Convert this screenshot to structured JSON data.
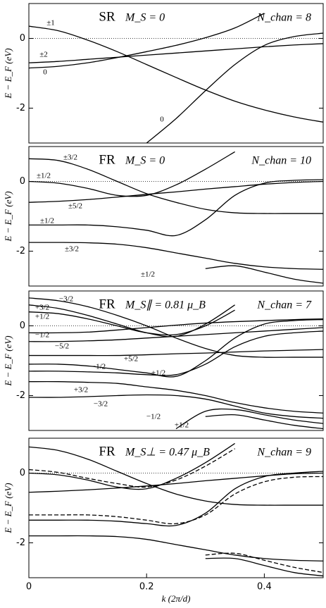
{
  "chart_data": [
    {
      "type": "line",
      "title": "SR",
      "subtitle": "M_S = 0",
      "annotation": "N_chan = 8",
      "ylabel": "E − E_F (eV)",
      "x": [
        0,
        0.05,
        0.1,
        0.15,
        0.2,
        0.25,
        0.3,
        0.35,
        0.4,
        0.45,
        0.5
      ],
      "xlim": [
        0,
        0.5
      ],
      "ylim": [
        -3,
        1
      ],
      "yticks": [
        -2,
        0
      ],
      "labels": [
        "±1",
        "±2",
        "0",
        "0"
      ],
      "series": [
        {
          "color": "#000000",
          "dash": false,
          "values": [
            0.35,
            0.22,
            -0.05,
            -0.38,
            -0.75,
            -1.12,
            -1.48,
            -1.8,
            -2.05,
            -2.25,
            -2.4
          ]
        },
        {
          "color": "#000000",
          "dash": false,
          "values": [
            -0.85,
            -0.8,
            -0.7,
            -0.55,
            -0.38,
            -0.2,
            0.02,
            0.3,
            0.72,
            null,
            null
          ]
        },
        {
          "color": "#000000",
          "dash": false,
          "values": [
            -0.7,
            -0.66,
            -0.6,
            -0.54,
            -0.48,
            -0.42,
            -0.36,
            -0.3,
            -0.24,
            -0.19,
            -0.15
          ]
        },
        {
          "color": "#000000",
          "dash": false,
          "values": [
            null,
            null,
            null,
            null,
            -3.0,
            -2.3,
            -1.5,
            -0.75,
            -0.2,
            0.05,
            0.15
          ]
        }
      ]
    },
    {
      "type": "line",
      "title": "FR",
      "subtitle": "M_S = 0",
      "annotation": "N_chan = 10",
      "ylabel": "E − E_F (eV)",
      "x": [
        0,
        0.05,
        0.1,
        0.15,
        0.2,
        0.25,
        0.3,
        0.35,
        0.4,
        0.45,
        0.5
      ],
      "xlim": [
        0,
        0.5
      ],
      "ylim": [
        -3,
        1
      ],
      "yticks": [
        -2,
        0
      ],
      "labels": [
        "±3/2",
        "±1/2",
        "±5/2",
        "±1/2",
        "±3/2",
        "±1/2"
      ],
      "series": [
        {
          "color": "#000000",
          "dash": false,
          "values": [
            0.65,
            0.6,
            0.35,
            0.0,
            -0.35,
            -0.6,
            -0.8,
            -0.9,
            -0.92,
            -0.92,
            -0.92
          ]
        },
        {
          "color": "#000000",
          "dash": false,
          "values": [
            0.0,
            -0.05,
            -0.2,
            -0.4,
            -0.4,
            -0.1,
            0.35,
            0.85,
            null,
            null,
            null
          ]
        },
        {
          "color": "#000000",
          "dash": false,
          "values": [
            -0.6,
            -0.57,
            -0.52,
            -0.45,
            -0.37,
            -0.3,
            -0.22,
            -0.15,
            -0.08,
            -0.03,
            0.0
          ]
        },
        {
          "color": "#000000",
          "dash": false,
          "values": [
            -1.25,
            -1.25,
            -1.25,
            -1.3,
            -1.4,
            -1.55,
            -1.1,
            -0.4,
            -0.05,
            0.03,
            0.05
          ]
        },
        {
          "color": "#000000",
          "dash": false,
          "values": [
            -1.75,
            -1.75,
            -1.76,
            -1.8,
            -1.9,
            -2.05,
            -2.2,
            -2.35,
            -2.45,
            -2.5,
            -2.52
          ]
        },
        {
          "color": "#000000",
          "dash": false,
          "values": [
            null,
            null,
            null,
            null,
            null,
            null,
            -2.5,
            -2.42,
            -2.6,
            -2.8,
            -2.92
          ]
        }
      ]
    },
    {
      "type": "line",
      "title": "FR",
      "subtitle": "M_S∥ = 0.81 μ_B",
      "annotation": "N_chan = 7",
      "ylabel": "E − E_F (eV)",
      "x": [
        0,
        0.05,
        0.1,
        0.15,
        0.2,
        0.25,
        0.3,
        0.35,
        0.4,
        0.45,
        0.5
      ],
      "xlim": [
        0,
        0.5
      ],
      "ylim": [
        -3,
        1
      ],
      "yticks": [
        -2,
        0
      ],
      "labels": [
        "−3/2",
        "+3/2",
        "+1/2",
        "−1/2",
        "−5/2",
        "+5/2",
        "−1/2",
        "+1/2",
        "+3/2",
        "−3/2",
        "−1/2",
        "+1/2"
      ],
      "series": [
        {
          "color": "#000000",
          "dash": false,
          "values": [
            0.8,
            0.72,
            0.55,
            0.3,
            0.0,
            -0.35,
            -0.65,
            -0.85,
            -0.9,
            -0.9,
            -0.9
          ]
        },
        {
          "color": "#000000",
          "dash": false,
          "values": [
            0.6,
            0.5,
            0.3,
            0.05,
            -0.2,
            -0.3,
            0.05,
            0.6,
            null,
            null,
            null
          ]
        },
        {
          "color": "#000000",
          "dash": false,
          "values": [
            0.4,
            0.35,
            0.2,
            0.0,
            -0.2,
            -0.25,
            0.0,
            0.45,
            null,
            null,
            null
          ]
        },
        {
          "color": "#000000",
          "dash": false,
          "values": [
            -0.2,
            -0.2,
            -0.18,
            -0.12,
            -0.05,
            0.02,
            0.08,
            0.12,
            0.15,
            0.18,
            0.2
          ]
        },
        {
          "color": "#000000",
          "dash": false,
          "values": [
            -0.45,
            -0.45,
            -0.43,
            -0.4,
            -0.35,
            -0.3,
            -0.25,
            -0.2,
            -0.15,
            -0.1,
            -0.05
          ]
        },
        {
          "color": "#000000",
          "dash": false,
          "values": [
            -0.85,
            -0.85,
            -0.85,
            -0.85,
            -0.83,
            -0.8,
            -0.78,
            -0.75,
            -0.72,
            -0.7,
            -0.68
          ]
        },
        {
          "color": "#000000",
          "dash": false,
          "values": [
            -1.1,
            -1.1,
            -1.15,
            -1.25,
            -1.35,
            -1.45,
            -1.0,
            -0.35,
            0.05,
            0.15,
            0.18
          ]
        },
        {
          "color": "#000000",
          "dash": false,
          "values": [
            -1.3,
            -1.3,
            -1.32,
            -1.35,
            -1.4,
            -1.4,
            -1.1,
            -0.6,
            -0.3,
            -0.2,
            -0.15
          ]
        },
        {
          "color": "#000000",
          "dash": false,
          "values": [
            -1.6,
            -1.6,
            -1.62,
            -1.65,
            -1.75,
            -1.85,
            -2.0,
            -2.2,
            -2.35,
            -2.45,
            -2.5
          ]
        },
        {
          "color": "#000000",
          "dash": false,
          "values": [
            -2.05,
            -2.05,
            -2.03,
            -2.0,
            -1.98,
            -2.0,
            -2.1,
            -2.3,
            -2.5,
            -2.6,
            -2.65
          ]
        },
        {
          "color": "#000000",
          "dash": false,
          "values": [
            null,
            null,
            null,
            null,
            null,
            -2.95,
            -2.45,
            -2.4,
            -2.55,
            -2.7,
            -2.8
          ]
        },
        {
          "color": "#000000",
          "dash": false,
          "values": [
            null,
            null,
            null,
            null,
            null,
            null,
            -2.6,
            -2.55,
            -2.7,
            -2.85,
            -2.95
          ]
        }
      ]
    },
    {
      "type": "line",
      "title": "FR",
      "subtitle": "M_S⊥ = 0.47 μ_B",
      "annotation": "N_chan = 9",
      "ylabel": "E − E_F (eV)",
      "xlabel": "k (2π/d)",
      "x": [
        0,
        0.05,
        0.1,
        0.15,
        0.2,
        0.25,
        0.3,
        0.35,
        0.4,
        0.45,
        0.5
      ],
      "xlim": [
        0,
        0.5
      ],
      "ylim": [
        -3,
        1
      ],
      "yticks": [
        -2,
        0
      ],
      "xticks": [
        0,
        0.2,
        0.4
      ],
      "series": [
        {
          "color": "#000000",
          "dash": false,
          "values": [
            0.75,
            0.65,
            0.4,
            0.05,
            -0.3,
            -0.6,
            -0.8,
            -0.9,
            -0.92,
            -0.92,
            -0.92
          ]
        },
        {
          "color": "#000000",
          "dash": false,
          "values": [
            0.0,
            -0.05,
            -0.2,
            -0.4,
            -0.45,
            -0.15,
            0.3,
            0.85,
            null,
            null,
            null
          ]
        },
        {
          "color": "#000000",
          "dash": false,
          "values": [
            -0.55,
            -0.52,
            -0.48,
            -0.43,
            -0.37,
            -0.3,
            -0.22,
            -0.15,
            -0.08,
            -0.02,
            0.0
          ]
        },
        {
          "color": "#000000",
          "dash": false,
          "values": [
            -1.35,
            -1.35,
            -1.35,
            -1.38,
            -1.45,
            -1.5,
            -1.15,
            -0.45,
            -0.1,
            0.0,
            0.05
          ]
        },
        {
          "color": "#000000",
          "dash": false,
          "values": [
            -1.8,
            -1.8,
            -1.8,
            -1.82,
            -1.9,
            -2.05,
            -2.2,
            -2.35,
            -2.45,
            -2.5,
            -2.52
          ]
        },
        {
          "color": "#000000",
          "dash": false,
          "values": [
            null,
            null,
            null,
            null,
            null,
            null,
            -2.45,
            -2.45,
            -2.65,
            -2.85,
            -2.95
          ]
        },
        {
          "color": "#000000",
          "dash": true,
          "values": [
            0.1,
            0.02,
            -0.15,
            -0.3,
            -0.4,
            -0.2,
            0.2,
            0.7,
            null,
            null,
            null
          ]
        },
        {
          "color": "#000000",
          "dash": true,
          "values": [
            -1.2,
            -1.2,
            -1.2,
            -1.25,
            -1.35,
            -1.45,
            -1.2,
            -0.6,
            -0.25,
            -0.12,
            -0.1
          ]
        },
        {
          "color": "#000000",
          "dash": true,
          "values": [
            null,
            null,
            null,
            null,
            null,
            null,
            -2.35,
            -2.3,
            -2.5,
            -2.7,
            -2.85
          ]
        }
      ]
    }
  ]
}
